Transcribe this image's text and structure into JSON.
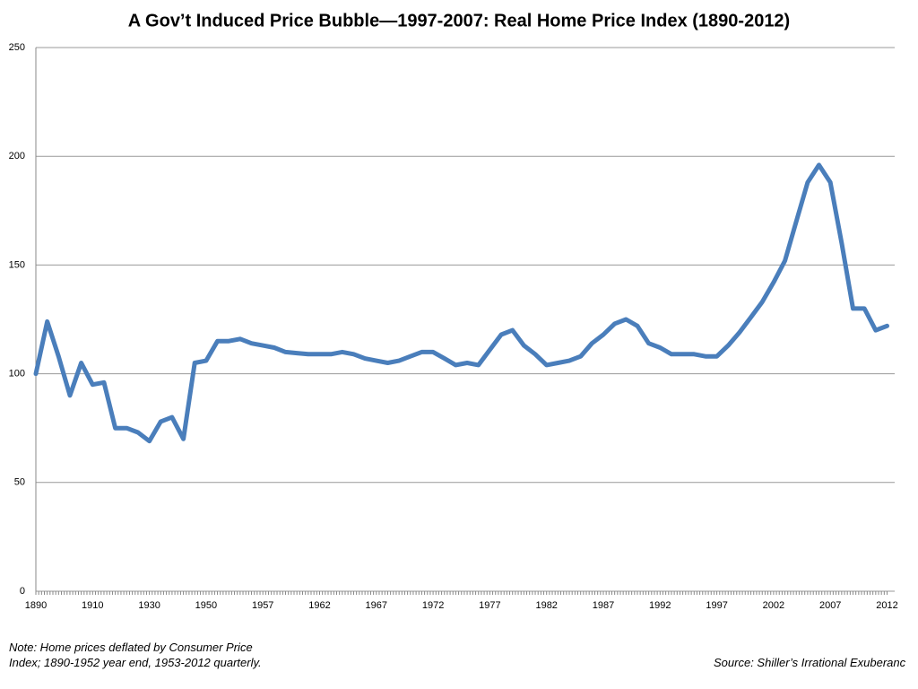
{
  "chart_data": {
    "type": "line",
    "title": "A Gov’t Induced Price Bubble—1997-2007: Real Home Price Index (1890-2012)",
    "note": "Note: Home prices deflated by Consumer Price Index; 1890-1952 year end, 1953-2012 quarterly.",
    "source": "Source: Shiller’s Irrational Exuberanc",
    "categories": [
      "1890",
      null,
      null,
      null,
      null,
      "1910",
      null,
      null,
      null,
      null,
      "1930",
      null,
      null,
      null,
      null,
      "1950",
      null,
      null,
      null,
      null,
      "1957",
      null,
      null,
      null,
      null,
      "1962",
      null,
      null,
      null,
      null,
      "1967",
      null,
      null,
      null,
      null,
      "1972",
      null,
      null,
      null,
      null,
      "1977",
      null,
      null,
      null,
      null,
      "1982",
      null,
      null,
      null,
      null,
      "1987",
      null,
      null,
      null,
      null,
      "1992",
      null,
      null,
      null,
      null,
      "1997",
      null,
      null,
      null,
      null,
      "2002",
      null,
      null,
      null,
      null,
      "2007",
      null,
      null,
      null,
      null,
      "2012"
    ],
    "values": [
      100,
      124,
      108,
      90,
      105,
      95,
      96,
      75,
      75,
      73,
      69,
      78,
      80,
      70,
      105,
      106,
      115,
      115,
      116,
      114,
      113,
      112,
      110,
      109.5,
      109,
      109,
      109,
      110,
      109,
      107,
      106,
      105,
      106,
      108,
      110,
      110,
      107,
      104,
      105,
      104,
      111,
      118,
      120,
      113,
      109,
      104,
      105,
      106,
      108,
      114,
      118,
      123,
      125,
      122,
      114,
      112,
      109,
      109,
      109,
      108,
      108,
      113,
      119,
      126,
      133,
      142,
      152,
      170,
      188,
      196,
      188,
      160,
      130,
      130,
      120,
      122
    ],
    "color": "#4a7ebb",
    "ylim": [
      0,
      250
    ],
    "yticks": [
      0,
      50,
      100,
      150,
      200,
      250
    ],
    "grid": true
  }
}
